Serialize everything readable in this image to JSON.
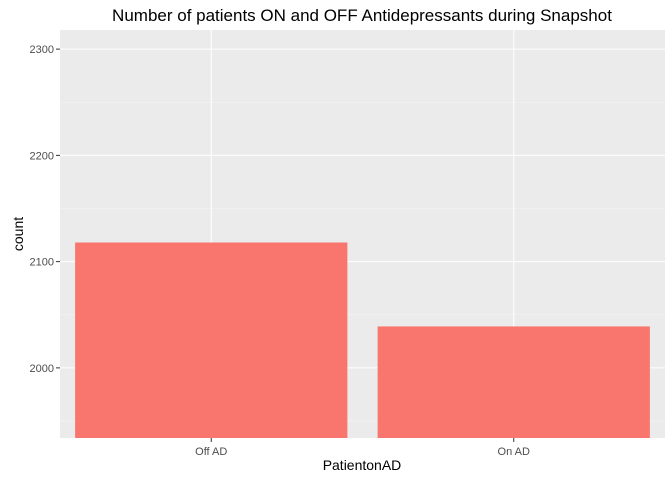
{
  "chart_data": {
    "type": "bar",
    "title": "Number of patients ON and OFF Antidepressants during Snapshot",
    "xlabel": "PatientonAD",
    "ylabel": "count",
    "categories": [
      "Off AD",
      "On AD"
    ],
    "values": [
      2118,
      2039
    ],
    "ylim": [
      1934,
      2318
    ],
    "yticks": [
      2000,
      2100,
      2200,
      2300
    ],
    "grid": true,
    "legend": "none",
    "colors": {
      "bar": "#f8766d",
      "panel": "#ebebeb",
      "grid_major": "#ffffff",
      "grid_minor": "#f5f5f5"
    }
  }
}
